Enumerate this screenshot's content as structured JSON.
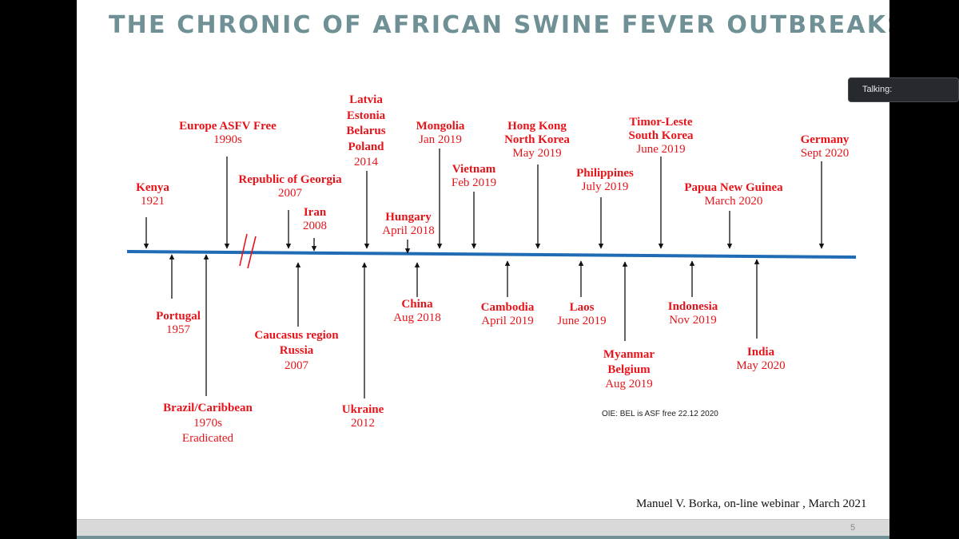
{
  "slide": {
    "title": "THE CHRONIC OF AFRICAN SWINE FEVER OUTBREAKS",
    "oie_note": "OIE: BEL is ASF free 22.12 2020",
    "citation": "Manuel V. Borka, on-line webinar , March 2021",
    "slide_number": "5"
  },
  "meeting": {
    "talking_label": "Talking:"
  },
  "colors": {
    "accent": "#6f9195",
    "timeline": "#1f6cb5",
    "label_red": "#e5141b"
  },
  "events_above": [
    {
      "name": "Kenya",
      "date": "1921"
    },
    {
      "name": "Europe ASFV Free",
      "date": "1990s"
    },
    {
      "name": "Republic of Georgia",
      "date": "2007"
    },
    {
      "name": "Iran",
      "date": "2008"
    },
    {
      "name": "Latvia",
      "name2": "Estonia",
      "name3": "Belarus",
      "name4": "Poland",
      "date": "2014"
    },
    {
      "name": "Hungary",
      "date": "April 2018"
    },
    {
      "name": "Mongolia",
      "date": "Jan 2019"
    },
    {
      "name": "Vietnam",
      "date": "Feb 2019"
    },
    {
      "name": "Hong Kong",
      "name2": "North Korea",
      "date": "May 2019"
    },
    {
      "name": "Philippines",
      "date": "July 2019"
    },
    {
      "name": "Timor-Leste",
      "name2": "South Korea",
      "date": "June  2019"
    },
    {
      "name": "Papua New Guinea",
      "date": "March 2020"
    },
    {
      "name": "Germany",
      "date": "Sept 2020"
    }
  ],
  "events_below": [
    {
      "name": "Portugal",
      "date": "1957"
    },
    {
      "name": "Brazil/Caribbean",
      "date": "1970s",
      "date2": "Eradicated"
    },
    {
      "name": "Caucasus region",
      "name2": "Russia",
      "date": "2007"
    },
    {
      "name": "Ukraine",
      "date": "2012"
    },
    {
      "name": "China",
      "date": "Aug 2018"
    },
    {
      "name": "Cambodia",
      "date": "April 2019"
    },
    {
      "name": "Laos",
      "date": "June  2019"
    },
    {
      "name": "Myanmar",
      "name2": "Belgium",
      "date": "Aug  2019"
    },
    {
      "name": "Indonesia",
      "date": "Nov 2019"
    },
    {
      "name": "India",
      "date": "May 2020"
    }
  ]
}
